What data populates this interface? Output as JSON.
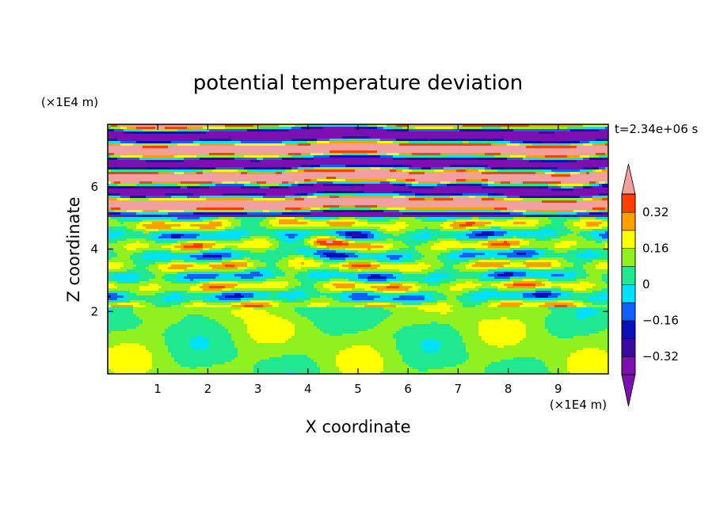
{
  "chart_data": {
    "type": "heatmap",
    "title": "potential temperature deviation",
    "xlabel": "X coordinate",
    "ylabel": "Z coordinate",
    "x_unit": "(×1E4 m)",
    "y_unit": "(×1E4 m)",
    "time_label": "t=2.34e+06 s",
    "xlim": [
      0,
      10
    ],
    "ylim": [
      0,
      8
    ],
    "x_ticks": [
      1,
      2,
      3,
      4,
      5,
      6,
      7,
      8,
      9
    ],
    "y_ticks": [
      2,
      4,
      6
    ],
    "colorbar": {
      "levels": [
        -0.4,
        -0.32,
        -0.24,
        -0.16,
        -0.08,
        0,
        0.08,
        0.16,
        0.24,
        0.32,
        0.4
      ],
      "tick_labels": [
        "0.32",
        "0.16",
        "0",
        "−0.16",
        "−0.32"
      ],
      "tick_values": [
        0.32,
        0.16,
        0,
        -0.16,
        -0.32
      ],
      "colors": [
        "#7b0fb0",
        "#3a0aa0",
        "#0a10b8",
        "#1060ff",
        "#00e0ff",
        "#20e890",
        "#90f020",
        "#ffff00",
        "#ffa000",
        "#ff4000",
        "#f0a0a0"
      ],
      "extend": "both"
    }
  }
}
